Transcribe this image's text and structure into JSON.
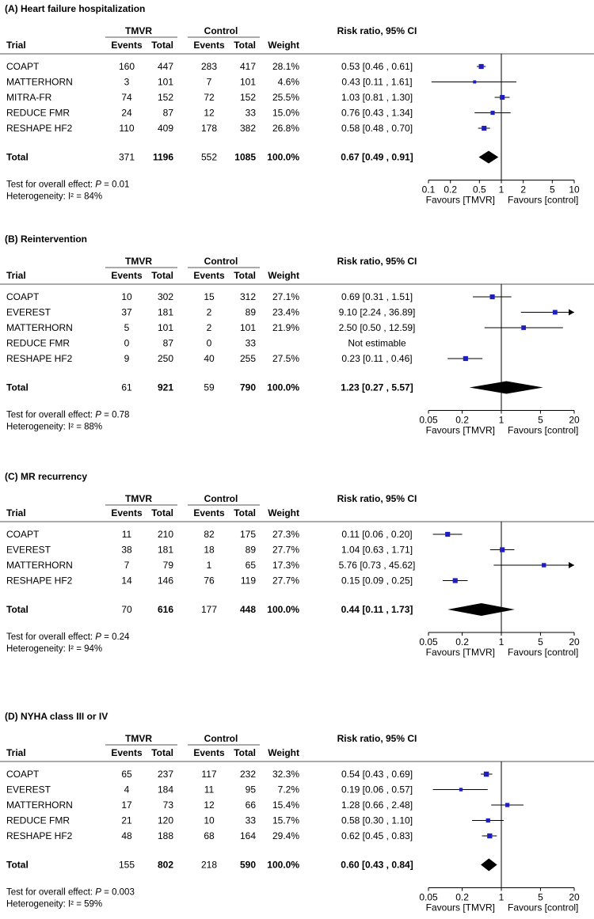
{
  "headers": {
    "trial": "Trial",
    "group_tmvr": "TMVR",
    "group_control": "Control",
    "events": "Events",
    "total": "Total",
    "weight": "Weight",
    "risk_ratio": "Risk ratio, 95% CI"
  },
  "favours": {
    "left": "Favours [TMVR]",
    "right": "Favours [control]"
  },
  "chart_data": [
    {
      "type": "forest",
      "title": "(A) Heart failure hospitalization",
      "axis": {
        "scale": "log",
        "ticks": [
          0.1,
          0.2,
          0.5,
          1,
          2,
          5,
          10
        ],
        "tick_labels": [
          "0.1",
          "0.2",
          "0.5",
          "1",
          "2",
          "5",
          "10"
        ],
        "range": [
          0.1,
          10
        ]
      },
      "rows": [
        {
          "trial": "COAPT",
          "tmvr_events": "160",
          "tmvr_total": "447",
          "ctrl_events": "283",
          "ctrl_total": "417",
          "weight": "28.1%",
          "ci_text": "0.53 [0.46 , 0.61]",
          "rr": 0.53,
          "lo": 0.46,
          "hi": 0.61,
          "w": 28.1
        },
        {
          "trial": "MATTERHORN",
          "tmvr_events": "3",
          "tmvr_total": "101",
          "ctrl_events": "7",
          "ctrl_total": "101",
          "weight": "4.6%",
          "ci_text": "0.43 [0.11 , 1.61]",
          "rr": 0.43,
          "lo": 0.11,
          "hi": 1.61,
          "w": 4.6
        },
        {
          "trial": "MITRA-FR",
          "tmvr_events": "74",
          "tmvr_total": "152",
          "ctrl_events": "72",
          "ctrl_total": "152",
          "weight": "25.5%",
          "ci_text": "1.03 [0.81 , 1.30]",
          "rr": 1.03,
          "lo": 0.81,
          "hi": 1.3,
          "w": 25.5
        },
        {
          "trial": "REDUCE FMR",
          "tmvr_events": "24",
          "tmvr_total": "87",
          "ctrl_events": "12",
          "ctrl_total": "33",
          "weight": "15.0%",
          "ci_text": "0.76 [0.43 , 1.34]",
          "rr": 0.76,
          "lo": 0.43,
          "hi": 1.34,
          "w": 15.0
        },
        {
          "trial": "RESHAPE HF2",
          "tmvr_events": "110",
          "tmvr_total": "409",
          "ctrl_events": "178",
          "ctrl_total": "382",
          "weight": "26.8%",
          "ci_text": "0.58 [0.48 , 0.70]",
          "rr": 0.58,
          "lo": 0.48,
          "hi": 0.7,
          "w": 26.8
        }
      ],
      "total": {
        "label": "Total",
        "tmvr_events": "371",
        "tmvr_total": "1196",
        "ctrl_events": "552",
        "ctrl_total": "1085",
        "weight": "100.0%",
        "ci_text": "0.67 [0.49 , 0.91]",
        "rr": 0.67,
        "lo": 0.49,
        "hi": 0.91
      },
      "test_prefix": "Test for overall effect: ",
      "p_label": "P",
      "p_value": " = 0.01",
      "heterogeneity": "Heterogeneity: I² = 84%"
    },
    {
      "type": "forest",
      "title": "(B) Reintervention",
      "axis": {
        "scale": "log",
        "ticks": [
          0.05,
          0.2,
          1,
          5,
          20
        ],
        "tick_labels": [
          "0.05",
          "0.2",
          "1",
          "5",
          "20"
        ],
        "range": [
          0.05,
          20
        ]
      },
      "rows": [
        {
          "trial": "COAPT",
          "tmvr_events": "10",
          "tmvr_total": "302",
          "ctrl_events": "15",
          "ctrl_total": "312",
          "weight": "27.1%",
          "ci_text": "0.69 [0.31 , 1.51]",
          "rr": 0.69,
          "lo": 0.31,
          "hi": 1.51,
          "w": 27.1
        },
        {
          "trial": "EVEREST",
          "tmvr_events": "37",
          "tmvr_total": "181",
          "ctrl_events": "2",
          "ctrl_total": "89",
          "weight": "23.4%",
          "ci_text": "9.10 [2.24 , 36.89]",
          "rr": 9.1,
          "lo": 2.24,
          "hi": 36.89,
          "w": 23.4
        },
        {
          "trial": "MATTERHORN",
          "tmvr_events": "5",
          "tmvr_total": "101",
          "ctrl_events": "2",
          "ctrl_total": "101",
          "weight": "21.9%",
          "ci_text": "2.50 [0.50 , 12.59]",
          "rr": 2.5,
          "lo": 0.5,
          "hi": 12.59,
          "w": 21.9
        },
        {
          "trial": "REDUCE FMR",
          "tmvr_events": "0",
          "tmvr_total": "87",
          "ctrl_events": "0",
          "ctrl_total": "33",
          "weight": "",
          "ci_text": "Not estimable",
          "rr": null,
          "lo": null,
          "hi": null,
          "w": 0
        },
        {
          "trial": "RESHAPE HF2",
          "tmvr_events": "9",
          "tmvr_total": "250",
          "ctrl_events": "40",
          "ctrl_total": "255",
          "weight": "27.5%",
          "ci_text": "0.23 [0.11 , 0.46]",
          "rr": 0.23,
          "lo": 0.11,
          "hi": 0.46,
          "w": 27.5
        }
      ],
      "total": {
        "label": "Total",
        "tmvr_events": "61",
        "tmvr_total": "921",
        "ctrl_events": "59",
        "ctrl_total": "790",
        "weight": "100.0%",
        "ci_text": "1.23 [0.27 , 5.57]",
        "rr": 1.23,
        "lo": 0.27,
        "hi": 5.57
      },
      "test_prefix": "Test for overall effect: ",
      "p_label": "P",
      "p_value": " = 0.78",
      "heterogeneity": "Heterogeneity: I² = 88%"
    },
    {
      "type": "forest",
      "title": "(C) MR recurrency",
      "axis": {
        "scale": "log",
        "ticks": [
          0.05,
          0.2,
          1,
          5,
          20
        ],
        "tick_labels": [
          "0.05",
          "0.2",
          "1",
          "5",
          "20"
        ],
        "range": [
          0.05,
          20
        ]
      },
      "rows": [
        {
          "trial": "COAPT",
          "tmvr_events": "11",
          "tmvr_total": "210",
          "ctrl_events": "82",
          "ctrl_total": "175",
          "weight": "27.3%",
          "ci_text": "0.11 [0.06 , 0.20]",
          "rr": 0.11,
          "lo": 0.06,
          "hi": 0.2,
          "w": 27.3
        },
        {
          "trial": "EVEREST",
          "tmvr_events": "38",
          "tmvr_total": "181",
          "ctrl_events": "18",
          "ctrl_total": "89",
          "weight": "27.7%",
          "ci_text": "1.04 [0.63 , 1.71]",
          "rr": 1.04,
          "lo": 0.63,
          "hi": 1.71,
          "w": 27.7
        },
        {
          "trial": "MATTERHORN",
          "tmvr_events": "7",
          "tmvr_total": "79",
          "ctrl_events": "1",
          "ctrl_total": "65",
          "weight": "17.3%",
          "ci_text": "5.76 [0.73 , 45.62]",
          "rr": 5.76,
          "lo": 0.73,
          "hi": 45.62,
          "w": 17.3
        },
        {
          "trial": "RESHAPE HF2",
          "tmvr_events": "14",
          "tmvr_total": "146",
          "ctrl_events": "76",
          "ctrl_total": "119",
          "weight": "27.7%",
          "ci_text": "0.15 [0.09 , 0.25]",
          "rr": 0.15,
          "lo": 0.09,
          "hi": 0.25,
          "w": 27.7
        }
      ],
      "total": {
        "label": "Total",
        "tmvr_events": "70",
        "tmvr_total": "616",
        "ctrl_events": "177",
        "ctrl_total": "448",
        "weight": "100.0%",
        "ci_text": "0.44 [0.11 , 1.73]",
        "rr": 0.44,
        "lo": 0.11,
        "hi": 1.73
      },
      "test_prefix": "Test for overall effect: ",
      "p_label": "P",
      "p_value": " = 0.24",
      "heterogeneity": "Heterogeneity: I² = 94%"
    },
    {
      "type": "forest",
      "title": "(D) NYHA class III or IV",
      "axis": {
        "scale": "log",
        "ticks": [
          0.05,
          0.2,
          1,
          5,
          20
        ],
        "tick_labels": [
          "0.05",
          "0.2",
          "1",
          "5",
          "20"
        ],
        "range": [
          0.05,
          20
        ]
      },
      "rows": [
        {
          "trial": "COAPT",
          "tmvr_events": "65",
          "tmvr_total": "237",
          "ctrl_events": "117",
          "ctrl_total": "232",
          "weight": "32.3%",
          "ci_text": "0.54 [0.43 , 0.69]",
          "rr": 0.54,
          "lo": 0.43,
          "hi": 0.69,
          "w": 32.3
        },
        {
          "trial": "EVEREST",
          "tmvr_events": "4",
          "tmvr_total": "184",
          "ctrl_events": "11",
          "ctrl_total": "95",
          "weight": "7.2%",
          "ci_text": "0.19 [0.06 , 0.57]",
          "rr": 0.19,
          "lo": 0.06,
          "hi": 0.57,
          "w": 7.2
        },
        {
          "trial": "MATTERHORN",
          "tmvr_events": "17",
          "tmvr_total": "73",
          "ctrl_events": "12",
          "ctrl_total": "66",
          "weight": "15.4%",
          "ci_text": "1.28 [0.66 , 2.48]",
          "rr": 1.28,
          "lo": 0.66,
          "hi": 2.48,
          "w": 15.4
        },
        {
          "trial": "REDUCE FMR",
          "tmvr_events": "21",
          "tmvr_total": "120",
          "ctrl_events": "10",
          "ctrl_total": "33",
          "weight": "15.7%",
          "ci_text": "0.58 [0.30 , 1.10]",
          "rr": 0.58,
          "lo": 0.3,
          "hi": 1.1,
          "w": 15.7
        },
        {
          "trial": "RESHAPE HF2",
          "tmvr_events": "48",
          "tmvr_total": "188",
          "ctrl_events": "68",
          "ctrl_total": "164",
          "weight": "29.4%",
          "ci_text": "0.62 [0.45 , 0.83]",
          "rr": 0.62,
          "lo": 0.45,
          "hi": 0.83,
          "w": 29.4
        }
      ],
      "total": {
        "label": "Total",
        "tmvr_events": "155",
        "tmvr_total": "802",
        "ctrl_events": "218",
        "ctrl_total": "590",
        "weight": "100.0%",
        "ci_text": "0.60 [0.43 , 0.84]",
        "rr": 0.6,
        "lo": 0.43,
        "hi": 0.84
      },
      "test_prefix": "Test for overall effect: ",
      "p_label": "P",
      "p_value": " = 0.003",
      "heterogeneity": "Heterogeneity: I² = 59%"
    }
  ],
  "colors": {
    "marker": "#1f1fbf",
    "line": "#000000",
    "separator": "#555555"
  }
}
